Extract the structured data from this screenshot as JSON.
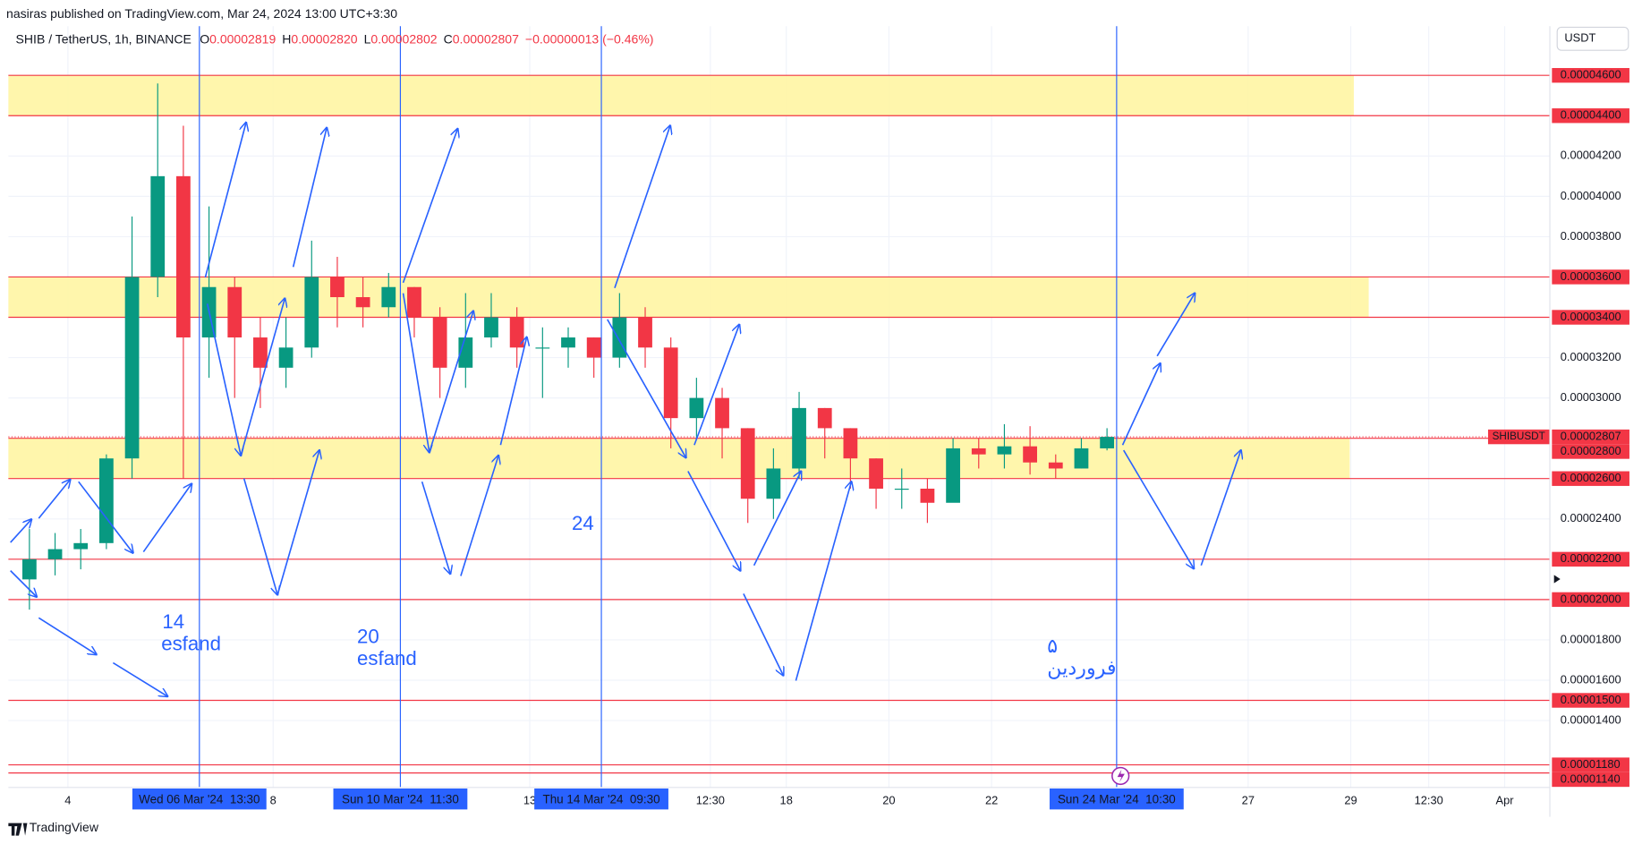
{
  "header": {
    "publisher": "nasiras published on TradingView.com, Mar 24, 2024 13:00 UTC+3:30",
    "currency": "USDT"
  },
  "chart_data": {
    "type": "candlestick",
    "symbol": "SHIB / TetherUS, 1h, BINANCE",
    "legend": [
      {
        "label": "O",
        "value": "0.00002819"
      },
      {
        "label": "H",
        "value": "0.00002820"
      },
      {
        "label": "L",
        "value": "0.00002802"
      },
      {
        "label": "C",
        "value": "0.00002807"
      }
    ],
    "change": "−0.00000013 (−0.46%)",
    "x": [
      3,
      3.5,
      4,
      4.5,
      5,
      5.5,
      6,
      6.5,
      7,
      7.5,
      8,
      8.5,
      9,
      9.5,
      10,
      10.5,
      11,
      11.5,
      12,
      12.5,
      13,
      13.5,
      14,
      14.5,
      15,
      15.5,
      16,
      16.5,
      17,
      17.5,
      18,
      18.5,
      19,
      19.5,
      20,
      20.5,
      21,
      21.5,
      22,
      22.5,
      23,
      23.5,
      24
    ],
    "open": [
      2.1e-05,
      2.2e-05,
      2.25e-05,
      2.28e-05,
      2.7e-05,
      3.6e-05,
      4.1e-05,
      3.3e-05,
      3.55e-05,
      3.3e-05,
      3.15e-05,
      3.25e-05,
      3.6e-05,
      3.5e-05,
      3.45e-05,
      3.55e-05,
      3.4e-05,
      3.15e-05,
      3.3e-05,
      3.4e-05,
      3.25e-05,
      3.25e-05,
      3.3e-05,
      3.2e-05,
      3.4e-05,
      3.25e-05,
      2.9e-05,
      3e-05,
      2.85e-05,
      2.5e-05,
      2.65e-05,
      2.95e-05,
      2.85e-05,
      2.7e-05,
      2.55e-05,
      2.55e-05,
      2.48e-05,
      2.75e-05,
      2.72e-05,
      2.76e-05,
      2.68e-05,
      2.65e-05,
      2.75e-05
    ],
    "high": [
      2.35e-05,
      2.33e-05,
      2.35e-05,
      2.72e-05,
      3.9e-05,
      4.56e-05,
      4.35e-05,
      3.95e-05,
      3.6e-05,
      3.4e-05,
      3.4e-05,
      3.78e-05,
      3.7e-05,
      3.6e-05,
      3.62e-05,
      3.55e-05,
      3.45e-05,
      3.52e-05,
      3.52e-05,
      3.45e-05,
      3.35e-05,
      3.35e-05,
      3.3e-05,
      3.52e-05,
      3.45e-05,
      3.3e-05,
      3.1e-05,
      3.05e-05,
      2.85e-05,
      2.75e-05,
      3.03e-05,
      2.95e-05,
      2.85e-05,
      2.7e-05,
      2.65e-05,
      2.6e-05,
      2.8e-05,
      2.8e-05,
      2.87e-05,
      2.86e-05,
      2.72e-05,
      2.8e-05,
      2.85e-05
    ],
    "low": [
      1.95e-05,
      2.12e-05,
      2.15e-05,
      2.25e-05,
      2.6e-05,
      3.5e-05,
      2.6e-05,
      3.1e-05,
      3e-05,
      2.95e-05,
      3.05e-05,
      3.2e-05,
      3.35e-05,
      3.35e-05,
      3.4e-05,
      3.3e-05,
      3e-05,
      3.05e-05,
      3.25e-05,
      3.15e-05,
      3e-05,
      3.15e-05,
      3.1e-05,
      3.15e-05,
      3.15e-05,
      2.75e-05,
      2.8e-05,
      2.7e-05,
      2.38e-05,
      2.4e-05,
      2.6e-05,
      2.7e-05,
      2.55e-05,
      2.45e-05,
      2.45e-05,
      2.38e-05,
      2.5e-05,
      2.65e-05,
      2.65e-05,
      2.62e-05,
      2.6e-05,
      2.65e-05,
      2.74e-05
    ],
    "close": [
      2.2e-05,
      2.25e-05,
      2.28e-05,
      2.7e-05,
      3.6e-05,
      4.1e-05,
      3.3e-05,
      3.55e-05,
      3.3e-05,
      3.15e-05,
      3.25e-05,
      3.6e-05,
      3.5e-05,
      3.45e-05,
      3.55e-05,
      3.4e-05,
      3.15e-05,
      3.3e-05,
      3.4e-05,
      3.25e-05,
      3.25e-05,
      3.3e-05,
      3.2e-05,
      3.4e-05,
      3.25e-05,
      2.9e-05,
      3e-05,
      2.85e-05,
      2.5e-05,
      2.65e-05,
      2.95e-05,
      2.85e-05,
      2.7e-05,
      2.55e-05,
      2.55e-05,
      2.48e-05,
      2.75e-05,
      2.72e-05,
      2.76e-05,
      2.68e-05,
      2.65e-05,
      2.75e-05,
      2.807e-05
    ],
    "up_color": "#089981",
    "down_color": "#f23645",
    "xlim": [
      2.84,
      32.88
    ],
    "ylim": [
      1.068e-05,
      4.844e-05
    ],
    "xticks": [
      4,
      8,
      13,
      {
        "value": 16.52,
        "label": "12:30"
      },
      18,
      20,
      22,
      27,
      29,
      {
        "value": 30.52,
        "label": "12:30"
      },
      {
        "value": 32,
        "label": "Apr"
      }
    ],
    "yticks": [
      {
        "value": 1.4e-05,
        "label": "0.00001400"
      },
      {
        "value": 1.6e-05,
        "label": "0.00001600"
      },
      {
        "value": 1.8e-05,
        "label": "0.00001800"
      },
      {
        "value": 2.4e-05,
        "label": "0.00002400"
      },
      {
        "value": 3e-05,
        "label": "0.00003000"
      },
      {
        "value": 3.2e-05,
        "label": "0.00003200"
      },
      {
        "value": 3.8e-05,
        "label": "0.00003800"
      },
      {
        "value": 4e-05,
        "label": "0.00004000"
      },
      {
        "value": 4.2e-05,
        "label": "0.00004200"
      }
    ],
    "grid": true,
    "last": {
      "name": "SHIBUSDT",
      "value": 2.807e-05
    },
    "levels": [
      {
        "value": 4.6e-05,
        "label": "0.00004600"
      },
      {
        "value": 4.4e-05,
        "label": "0.00004400"
      },
      {
        "value": 3.6e-05,
        "label": "0.00003600"
      },
      {
        "value": 3.4e-05,
        "label": "0.00003400"
      },
      {
        "value": 2.8e-05,
        "label": "0.00002800"
      },
      {
        "value": 2.6e-05,
        "label": "0.00002600"
      },
      {
        "value": 2.2e-05,
        "label": "0.00002200"
      },
      {
        "value": 2e-05,
        "label": "0.00002000"
      },
      {
        "value": 1.5e-05,
        "label": "0.00001500"
      },
      {
        "value": 1.18e-05,
        "label": "0.00001180"
      },
      {
        "value": 1.14e-05,
        "label": "0.00001140"
      }
    ],
    "level_color": "#f23645",
    "zones": [
      {
        "from": 4.4e-05,
        "to": 4.6e-05,
        "end": 29.06
      },
      {
        "from": 3.4e-05,
        "to": 3.6e-05,
        "end": 29.35
      },
      {
        "from": 2.6e-05,
        "to": 2.8e-05,
        "end": 28.98
      }
    ],
    "zone_color": "#fff59d",
    "markers": [
      {
        "x": 6.5625,
        "label": "Wed 06 Mar '24  13:30"
      },
      {
        "x": 10.479,
        "label": "Sun 10 Mar '24  11:30"
      },
      {
        "x": 14.396,
        "label": "Thu 14 Mar '24  09:30"
      },
      {
        "x": 24.4375,
        "label": "Sun 24 Mar '24  10:30"
      }
    ],
    "marker_color": "#2962ff"
  },
  "annotations": [
    "14",
    "esfand",
    "20",
    "esfand",
    "24",
    "۵",
    "فروردین"
  ],
  "footer": "TradingView"
}
